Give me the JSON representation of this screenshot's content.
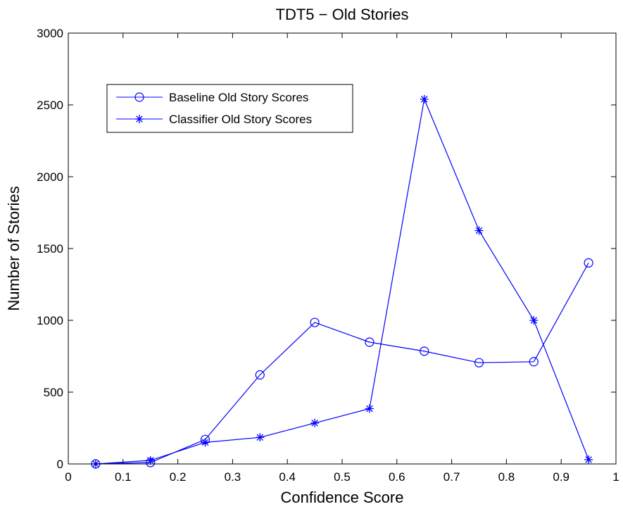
{
  "chart_data": {
    "type": "line",
    "title": "TDT5 − Old Stories",
    "xlabel": "Confidence Score",
    "ylabel": "Number of Stories",
    "xlim": [
      0,
      1
    ],
    "ylim": [
      0,
      3000
    ],
    "xticks": [
      0,
      0.1,
      0.2,
      0.3,
      0.4,
      0.5,
      0.6,
      0.7,
      0.8,
      0.9,
      1
    ],
    "xtick_labels": [
      "0",
      "0.1",
      "0.2",
      "0.3",
      "0.4",
      "0.5",
      "0.6",
      "0.7",
      "0.8",
      "0.9",
      "1"
    ],
    "yticks": [
      0,
      500,
      1000,
      1500,
      2000,
      2500,
      3000
    ],
    "ytick_labels": [
      "0",
      "500",
      "1000",
      "1500",
      "2000",
      "2500",
      "3000"
    ],
    "grid": false,
    "legend_position": "top-left",
    "x": [
      0.05,
      0.15,
      0.25,
      0.35,
      0.45,
      0.55,
      0.65,
      0.75,
      0.85,
      0.95
    ],
    "series": [
      {
        "name": "Baseline Old Story Scores",
        "marker": "circle",
        "color": "#0000ff",
        "values": [
          0,
          10,
          170,
          620,
          985,
          848,
          785,
          705,
          712,
          1400
        ]
      },
      {
        "name": "Classifier Old Story Scores",
        "marker": "asterisk",
        "color": "#0000ff",
        "values": [
          0,
          25,
          150,
          185,
          285,
          385,
          2540,
          1625,
          1000,
          30
        ]
      }
    ]
  }
}
